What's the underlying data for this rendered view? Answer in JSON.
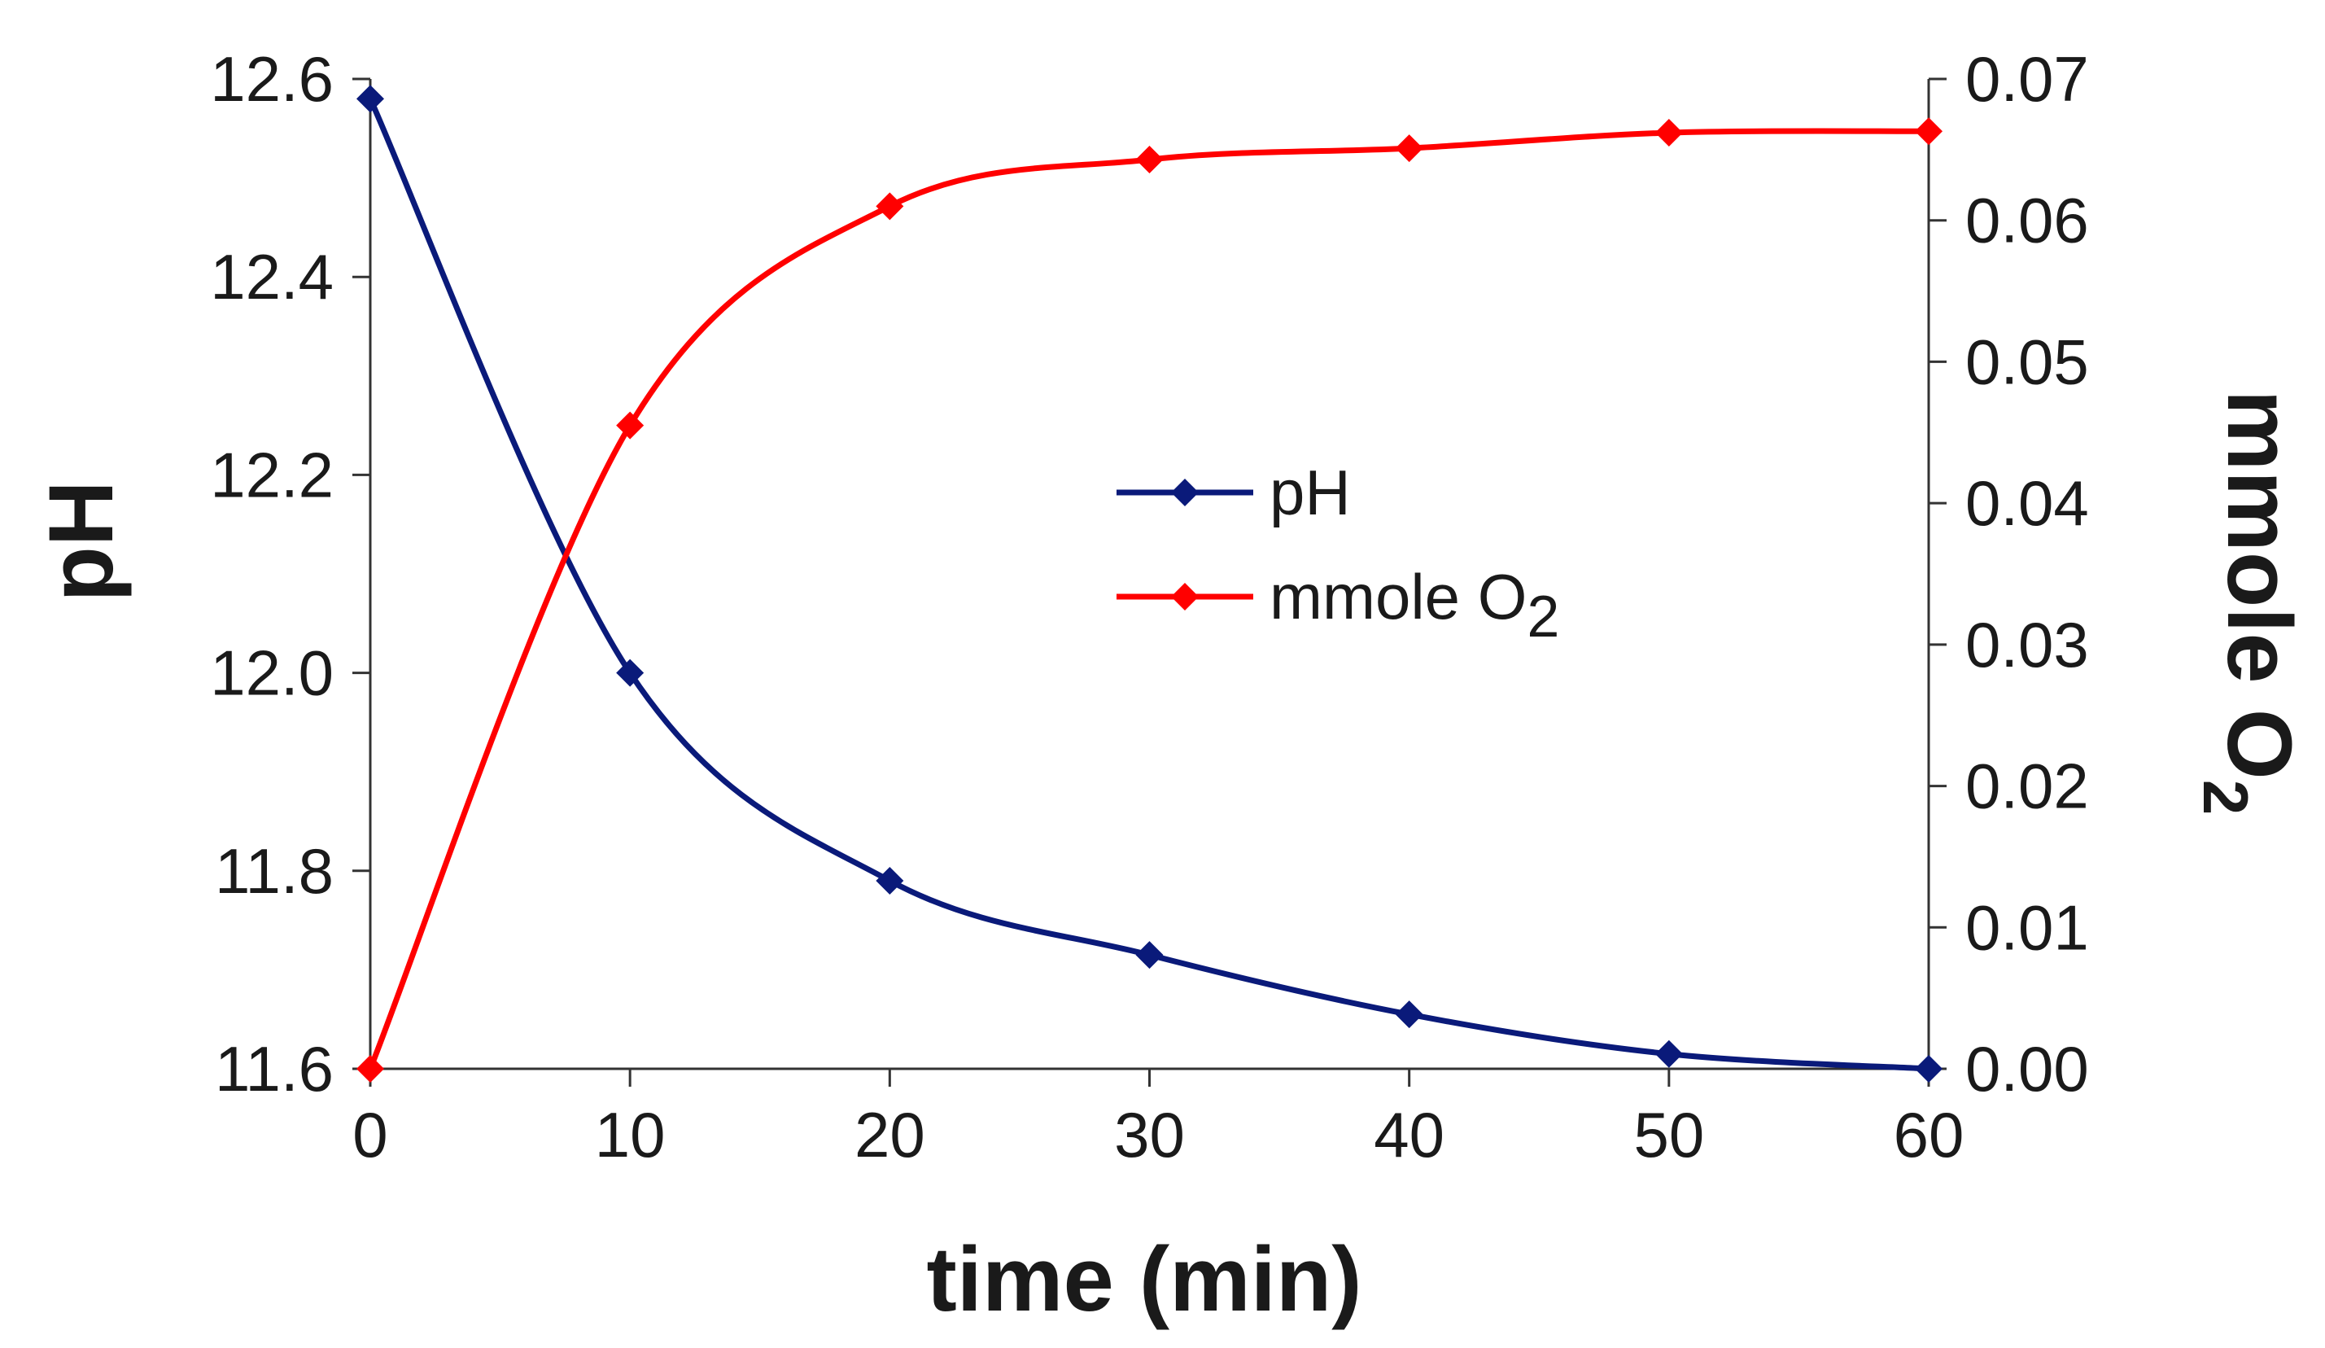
{
  "chart_data": {
    "type": "line",
    "title": "",
    "xlabel": "time (min)",
    "x": [
      0,
      10,
      20,
      30,
      40,
      50,
      60
    ],
    "xlim": [
      0,
      60
    ],
    "x_ticks": [
      "0",
      "10",
      "20",
      "30",
      "40",
      "50",
      "60"
    ],
    "ylabel_left": "pH",
    "ylim_left": [
      11.6,
      12.6
    ],
    "y_ticks_left": [
      "11.6",
      "11.8",
      "12.0",
      "12.2",
      "12.4",
      "12.6"
    ],
    "ylabel_right": {
      "main": "mmole O",
      "sub": "2"
    },
    "ylim_right": [
      0.0,
      0.07
    ],
    "y_ticks_right": [
      "0.00",
      "0.01",
      "0.02",
      "0.03",
      "0.04",
      "0.05",
      "0.06",
      "0.07"
    ],
    "grid": false,
    "legend_position": "center",
    "series": [
      {
        "name": "pH",
        "legend_label": {
          "main": "pH",
          "sub": ""
        },
        "axis": "left",
        "color": "#0a1a7a",
        "marker": "diamond",
        "values": [
          12.58,
          12.0,
          11.79,
          11.715,
          11.655,
          11.615,
          11.6
        ]
      },
      {
        "name": "mmole O2",
        "legend_label": {
          "main": "mmole O",
          "sub": "2"
        },
        "axis": "right",
        "color": "#ff0000",
        "marker": "diamond",
        "values": [
          0.0,
          0.0455,
          0.061,
          0.0643,
          0.0651,
          0.0662,
          0.0663
        ]
      }
    ]
  }
}
